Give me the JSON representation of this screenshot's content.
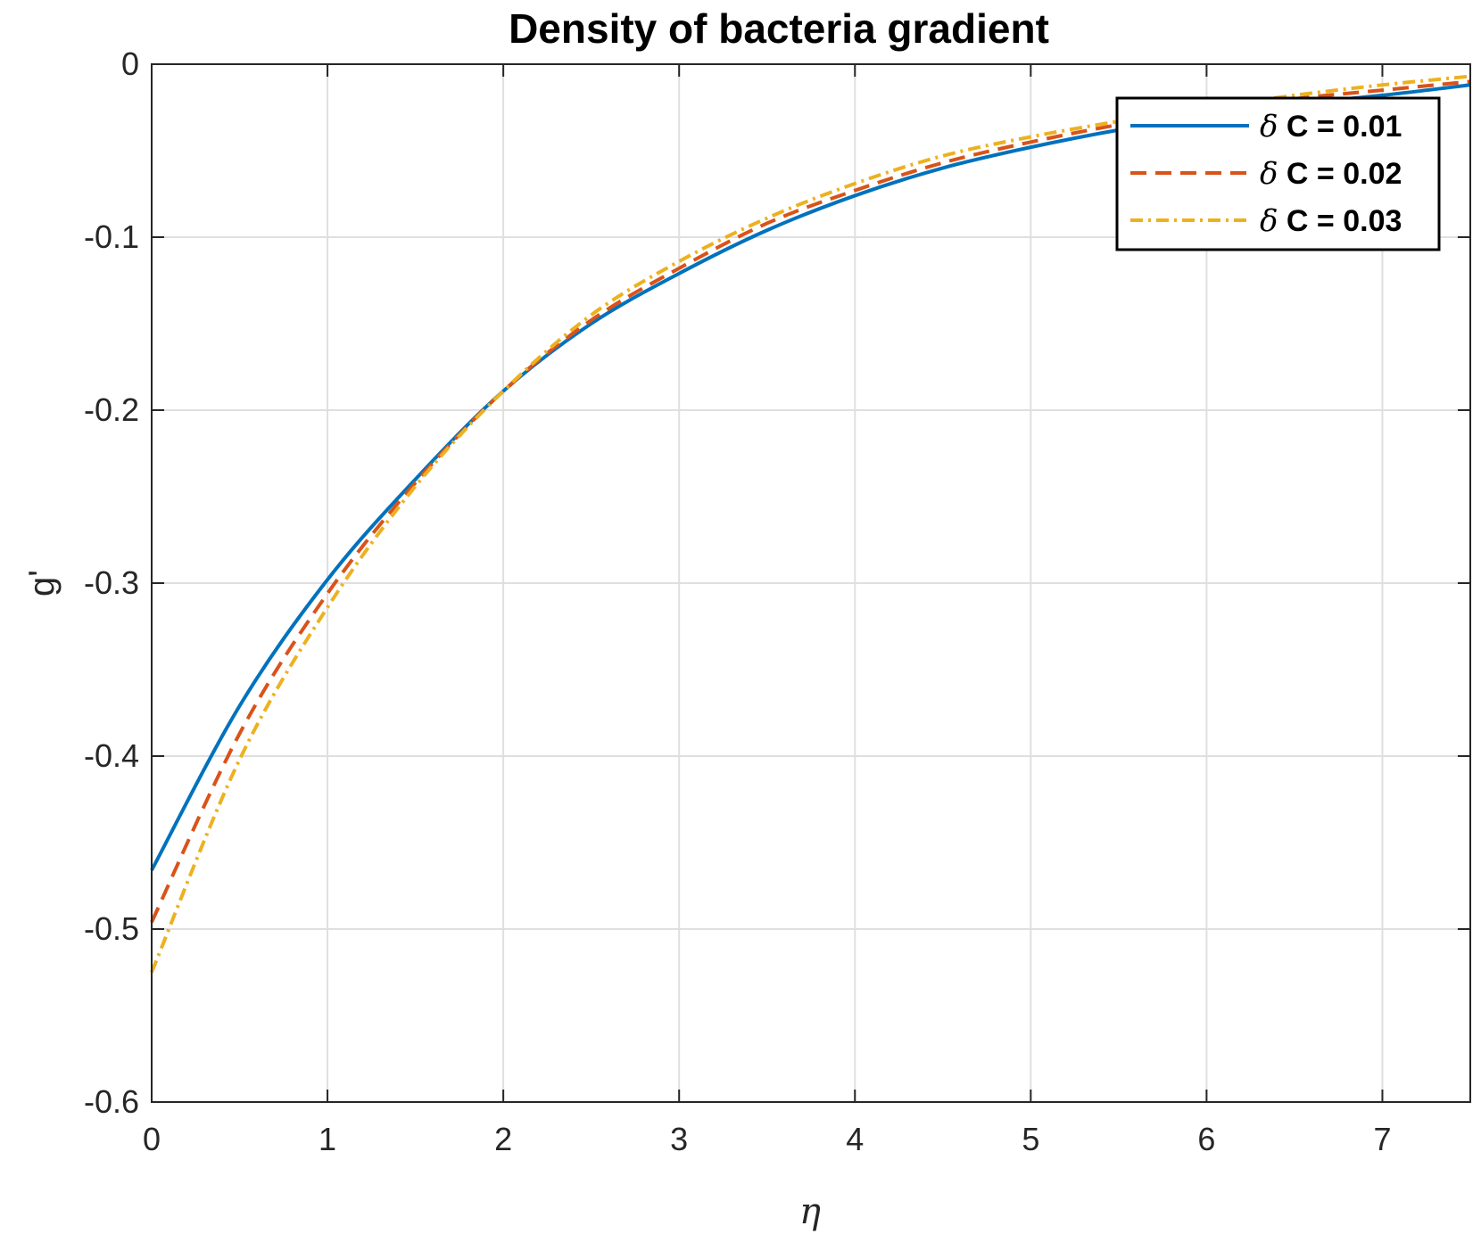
{
  "chart_data": {
    "type": "line",
    "title": "Density of bacteria gradient",
    "xlabel": "η",
    "ylabel": "g'",
    "xlim": [
      0,
      7.5
    ],
    "ylim": [
      -0.6,
      0
    ],
    "xticks": [
      0,
      1,
      2,
      3,
      4,
      5,
      6,
      7
    ],
    "yticks": [
      0,
      -0.1,
      -0.2,
      -0.3,
      -0.4,
      -0.5,
      -0.6
    ],
    "xtick_labels": [
      "0",
      "1",
      "2",
      "3",
      "4",
      "5",
      "6",
      "7"
    ],
    "ytick_labels": [
      "0",
      "-0.1",
      "-0.2",
      "-0.3",
      "-0.4",
      "-0.5",
      "-0.6"
    ],
    "grid": true,
    "legend_position": "top-right",
    "x": [
      0,
      0.5,
      1,
      1.5,
      2,
      2.5,
      3,
      3.5,
      4,
      4.5,
      5,
      5.5,
      6,
      6.5,
      7,
      7.5
    ],
    "series": [
      {
        "name": "δ C = 0.01",
        "legend_symbol": "δ",
        "legend_rest": " C = 0.01",
        "color": "#0072BD",
        "dash": "solid",
        "values": [
          -0.466,
          -0.371,
          -0.298,
          -0.24,
          -0.189,
          -0.15,
          -0.121,
          -0.096,
          -0.076,
          -0.06,
          -0.048,
          -0.038,
          -0.03,
          -0.023,
          -0.018,
          -0.012
        ]
      },
      {
        "name": "δ C = 0.02",
        "legend_symbol": "δ",
        "legend_rest": " C = 0.02",
        "color": "#D95319",
        "dash": "dashed",
        "values": [
          -0.496,
          -0.387,
          -0.306,
          -0.242,
          -0.189,
          -0.148,
          -0.118,
          -0.092,
          -0.073,
          -0.057,
          -0.045,
          -0.035,
          -0.027,
          -0.02,
          -0.015,
          -0.01
        ]
      },
      {
        "name": "δ C = 0.03",
        "legend_symbol": "δ",
        "legend_rest": " C = 0.03",
        "color": "#EDB120",
        "dash": "dashdot",
        "values": [
          -0.525,
          -0.402,
          -0.314,
          -0.244,
          -0.189,
          -0.145,
          -0.114,
          -0.089,
          -0.069,
          -0.053,
          -0.042,
          -0.033,
          -0.025,
          -0.018,
          -0.012,
          -0.007
        ]
      }
    ]
  }
}
